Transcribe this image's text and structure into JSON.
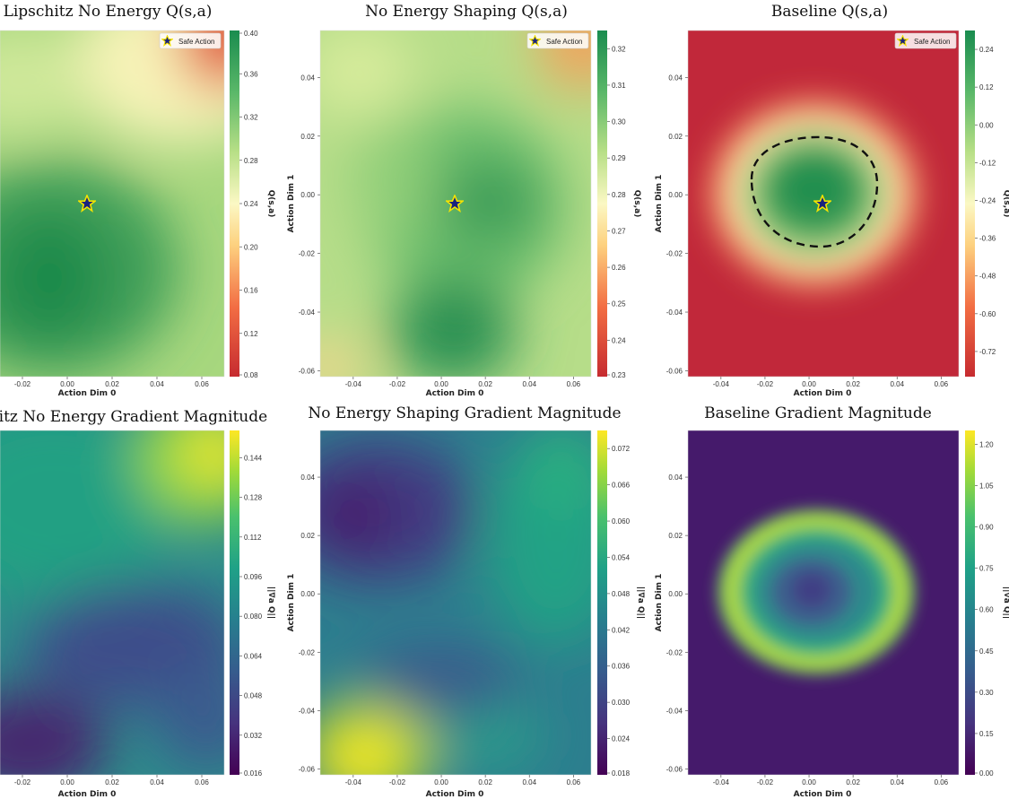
{
  "chart_data": [
    {
      "type": "heatmap",
      "title": "Lipschitz No Energy Q(s,a)",
      "xlabel": "Action Dim 0",
      "ylabel": "",
      "colorbar_label": "Q(s,a)",
      "colormap": "RdYlGn",
      "x_ticks": [
        "-0.02",
        "0.00",
        "0.02",
        "0.04",
        "0.06"
      ],
      "y_ticks": [],
      "colorbar_ticks": [
        "0.40",
        "0.36",
        "0.32",
        "0.28",
        "0.24",
        "0.20",
        "0.16",
        "0.12",
        "0.08"
      ],
      "value_range": [
        0.08,
        0.4
      ],
      "legend": [
        "Safe Action"
      ],
      "safe_action": {
        "x": 0.007,
        "y": -0.003
      },
      "peaks": [
        {
          "x": -0.01,
          "y": -0.03,
          "value": 0.39
        }
      ],
      "notes": "High-value green basin at lower left, low-value red corner at top right"
    },
    {
      "type": "heatmap",
      "title": "No Energy Shaping Q(s,a)",
      "xlabel": "Action Dim 0",
      "ylabel": "Action Dim 1",
      "colorbar_label": "Q(s,a)",
      "colormap": "RdYlGn",
      "x_ticks": [
        "-0.04",
        "-0.02",
        "0.00",
        "0.02",
        "0.04",
        "0.06"
      ],
      "y_ticks": [
        "0.04",
        "0.02",
        "0.00",
        "-0.02",
        "-0.04",
        "-0.06"
      ],
      "colorbar_ticks": [
        "0.32",
        "0.31",
        "0.30",
        "0.29",
        "0.28",
        "0.27",
        "0.26",
        "0.25",
        "0.24",
        "0.23"
      ],
      "value_range": [
        0.23,
        0.325
      ],
      "legend": [
        "Safe Action"
      ],
      "safe_action": {
        "x": 0.007,
        "y": -0.003
      },
      "peaks": [
        {
          "x": 0.005,
          "y": -0.05,
          "value": 0.32
        },
        {
          "x": 0.02,
          "y": 0.0,
          "value": 0.315
        }
      ],
      "notes": "Greenest near bottom centre, red fringe at top right and bottom left"
    },
    {
      "type": "heatmap",
      "title": "Baseline Q(s,a)",
      "xlabel": "Action Dim 0",
      "ylabel": "Action Dim 1",
      "colorbar_label": "Q(s,a)",
      "colormap": "RdYlGn",
      "x_ticks": [
        "-0.04",
        "-0.02",
        "0.00",
        "0.02",
        "0.04",
        "0.06"
      ],
      "y_ticks": [
        "0.04",
        "0.02",
        "0.00",
        "-0.02",
        "-0.04",
        "-0.06"
      ],
      "colorbar_ticks": [
        "0.24",
        "0.12",
        "0.00",
        "-0.12",
        "-0.24",
        "-0.36",
        "-0.48",
        "-0.60",
        "-0.72"
      ],
      "value_range": [
        -0.8,
        0.3
      ],
      "legend": [
        "Safe Action"
      ],
      "safe_action": {
        "x": 0.007,
        "y": -0.003
      },
      "contour": {
        "style": "dashed",
        "center_x": 0.007,
        "center_y": -0.002,
        "radius_x": 0.026,
        "radius_y": 0.016
      },
      "notes": "Green disc around safe action, red everywhere outside"
    },
    {
      "type": "heatmap",
      "title": "Lipschitz No Energy Gradient Magnitude",
      "xlabel": "Action Dim 0",
      "ylabel": "",
      "colorbar_label": "||∇a Q||",
      "colormap": "viridis",
      "x_ticks": [
        "-0.02",
        "0.00",
        "0.02",
        "0.04",
        "0.06"
      ],
      "y_ticks": [],
      "colorbar_ticks": [
        "0.144",
        "0.128",
        "0.112",
        "0.096",
        "0.080",
        "0.064",
        "0.048",
        "0.032",
        "0.016"
      ],
      "value_range": [
        0.016,
        0.155
      ],
      "notes": "Bright yellow peak in top-right corner, dark purple at bottom left"
    },
    {
      "type": "heatmap",
      "title": "No Energy Shaping Gradient Magnitude",
      "xlabel": "Action Dim 0",
      "ylabel": "Action Dim 1",
      "colorbar_label": "||∇a Q||",
      "colormap": "viridis",
      "x_ticks": [
        "-0.04",
        "-0.02",
        "0.00",
        "0.02",
        "0.04",
        "0.06"
      ],
      "y_ticks": [
        "0.04",
        "0.02",
        "0.00",
        "-0.02",
        "-0.04",
        "-0.06"
      ],
      "colorbar_ticks": [
        "0.072",
        "0.066",
        "0.060",
        "0.054",
        "0.048",
        "0.042",
        "0.036",
        "0.030",
        "0.024",
        "0.018"
      ],
      "value_range": [
        0.018,
        0.075
      ],
      "notes": "Dark minimum upper left, yellow maximum bottom left"
    },
    {
      "type": "heatmap",
      "title": "Baseline Gradient Magnitude",
      "xlabel": "Action Dim 0",
      "ylabel": "Action Dim 1",
      "colorbar_label": "||∇a Q||",
      "colormap": "viridis",
      "x_ticks": [
        "-0.04",
        "-0.02",
        "0.00",
        "0.02",
        "0.04",
        "0.06"
      ],
      "y_ticks": [
        "0.04",
        "0.02",
        "0.00",
        "-0.02",
        "-0.04",
        "-0.06"
      ],
      "colorbar_ticks": [
        "1.20",
        "1.05",
        "0.90",
        "0.75",
        "0.60",
        "0.45",
        "0.30",
        "0.15",
        "0.00"
      ],
      "value_range": [
        0.0,
        1.25
      ],
      "notes": "Bright ring around safe action, near zero elsewhere"
    }
  ]
}
